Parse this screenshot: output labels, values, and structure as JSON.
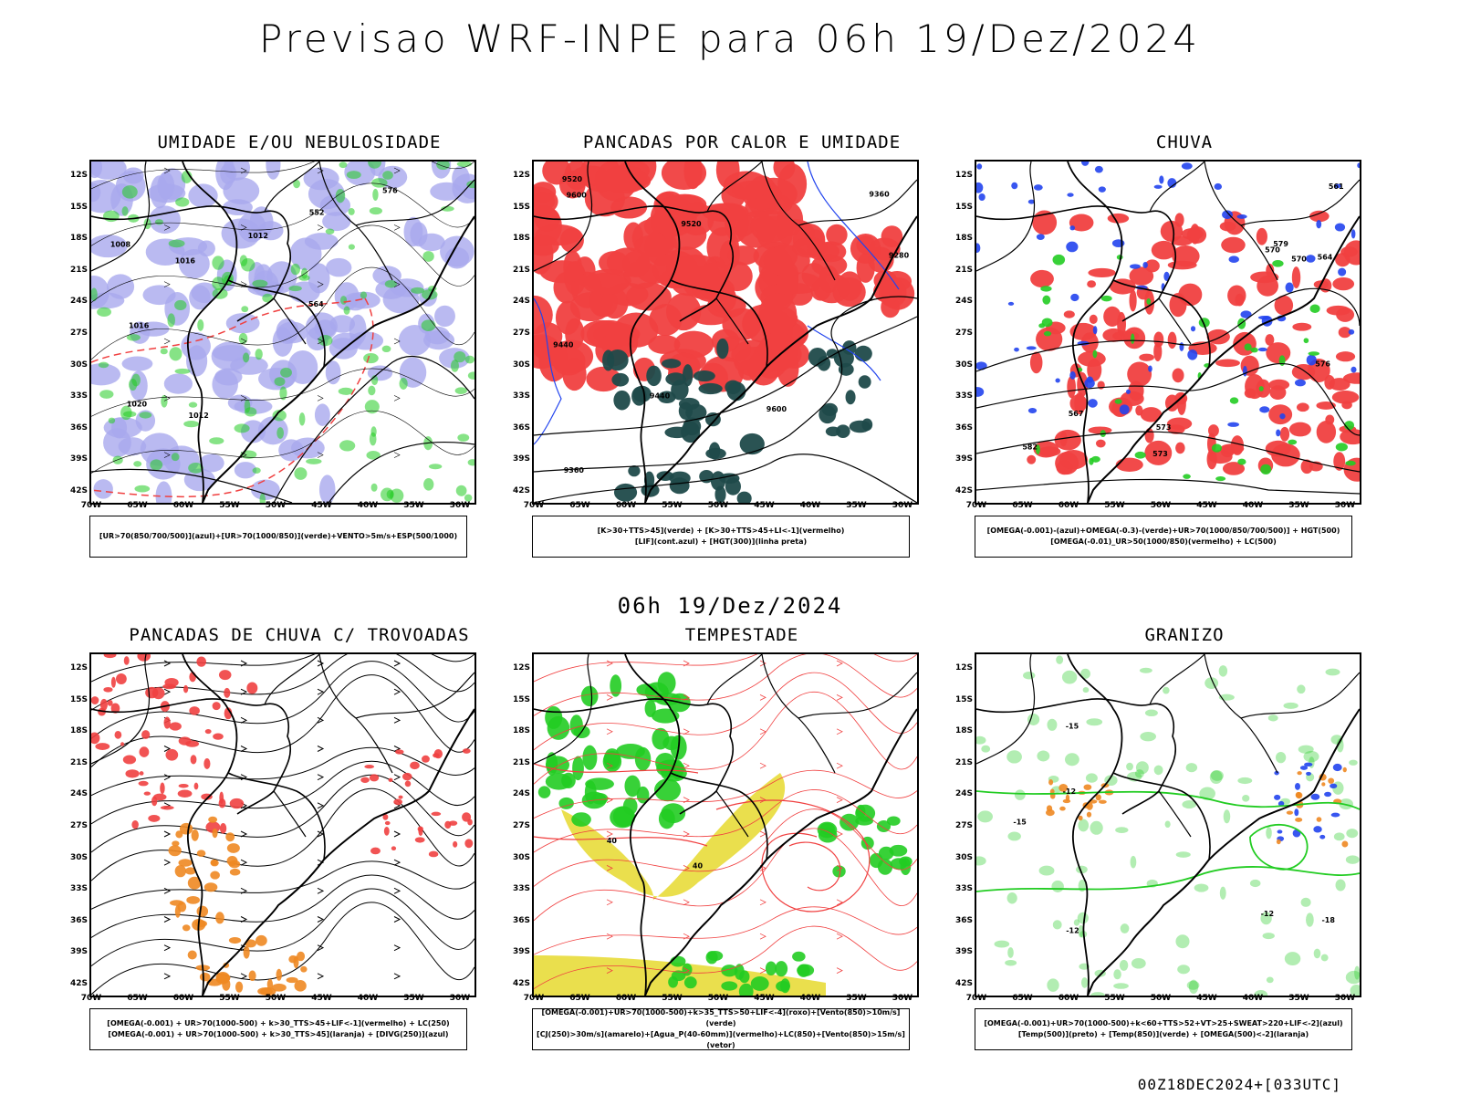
{
  "header": {
    "title": "Previsao WRF-INPE  para 06h 19/Dez/2024"
  },
  "mid_label": "06h 19/Dez/2024",
  "footer": "00Z18DEC2024+[033UTC]",
  "axes": {
    "lat_ticks": [
      "12S",
      "15S",
      "18S",
      "21S",
      "24S",
      "27S",
      "30S",
      "33S",
      "36S",
      "39S",
      "42S"
    ],
    "lon_ticks": [
      "70W",
      "65W",
      "60W",
      "55W",
      "50W",
      "45W",
      "40W",
      "35W",
      "30W"
    ]
  },
  "colors": {
    "red": "#f04040",
    "green": "#22cc22",
    "blue": "#2244ee",
    "lavender": "#a9a9ee",
    "dark_teal": "#1f4a4a",
    "yellow": "#e8dc3a",
    "orange": "#ee8822",
    "purple": "#9922cc"
  },
  "panels": [
    {
      "title": "UMIDADE E/OU NEBULOSIDADE",
      "legend": [
        "[UR>70(850/700/500)](azul)+[UR>70(1000/850)](verde)+VENTO>5m/s+ESP(500/1000)"
      ],
      "contour_labels": [
        "1008",
        "1012",
        "1016",
        "1012",
        "1016",
        "1020",
        "576",
        "564",
        "552"
      ]
    },
    {
      "title": "PANCADAS POR CALOR E UMIDADE",
      "legend": [
        "[K>30+TTS>45](verde)  +  [K>30+TTS>45+LI<-1](vermelho)",
        "[LIF](cont.azul)  +  [HGT(300)](linha preta)"
      ],
      "contour_labels": [
        "9600",
        "9520",
        "9440",
        "9360",
        "9280",
        "9600",
        "9520",
        "9440",
        "9360"
      ]
    },
    {
      "title": "CHUVA",
      "legend": [
        "[OMEGA(-0.001)-(azul)+OMEGA(-0.3)-(verde)+UR>70(1000/850/700/500)] + HGT(500)",
        "[OMEGA(-0.01)_UR>50(1000/850)(vermelho) + LC(500)"
      ],
      "contour_labels": [
        "582",
        "579",
        "576",
        "573",
        "570",
        "567",
        "564",
        "561",
        "573",
        "570"
      ]
    },
    {
      "title": "PANCADAS DE CHUVA C/ TROVOADAS",
      "legend": [
        "[OMEGA(-0.001) + UR>70(1000-500) + k>30_TTS>45+LIF<-1](vermelho) + LC(250)",
        "[OMEGA(-0.001) + UR>70(1000-500) + k>30_TTS>45](laranja) + [DIVG(250)](azul)"
      ],
      "contour_labels": []
    },
    {
      "title": "TEMPESTADE",
      "legend": [
        "[OMEGA(-0.001)+UR>70(1000-500)+k>35_TTS>50+LIF<-4](roxo)+[Vento(850)>10m/s](verde)",
        "[CJ(250)>30m/s](amarelo)+[Agua_P(40-60mm)](vermelho)+LC(850)+[Vento(850)>15m/s](vetor)"
      ],
      "contour_labels": [
        "40",
        "40"
      ]
    },
    {
      "title": "GRANIZO",
      "legend": [
        "[OMEGA(-0.001)+UR>70(1000-500)+k<60+TTS>52+VT>25+SWEAT>220+LIF<-2](azul)",
        "[Temp(500)](preto) + [Temp(850)](verde) + [OMEGA(500)<-2](laranja)"
      ],
      "contour_labels": [
        "-12",
        "-12",
        "-12",
        "-15",
        "-15",
        "-18"
      ]
    }
  ]
}
